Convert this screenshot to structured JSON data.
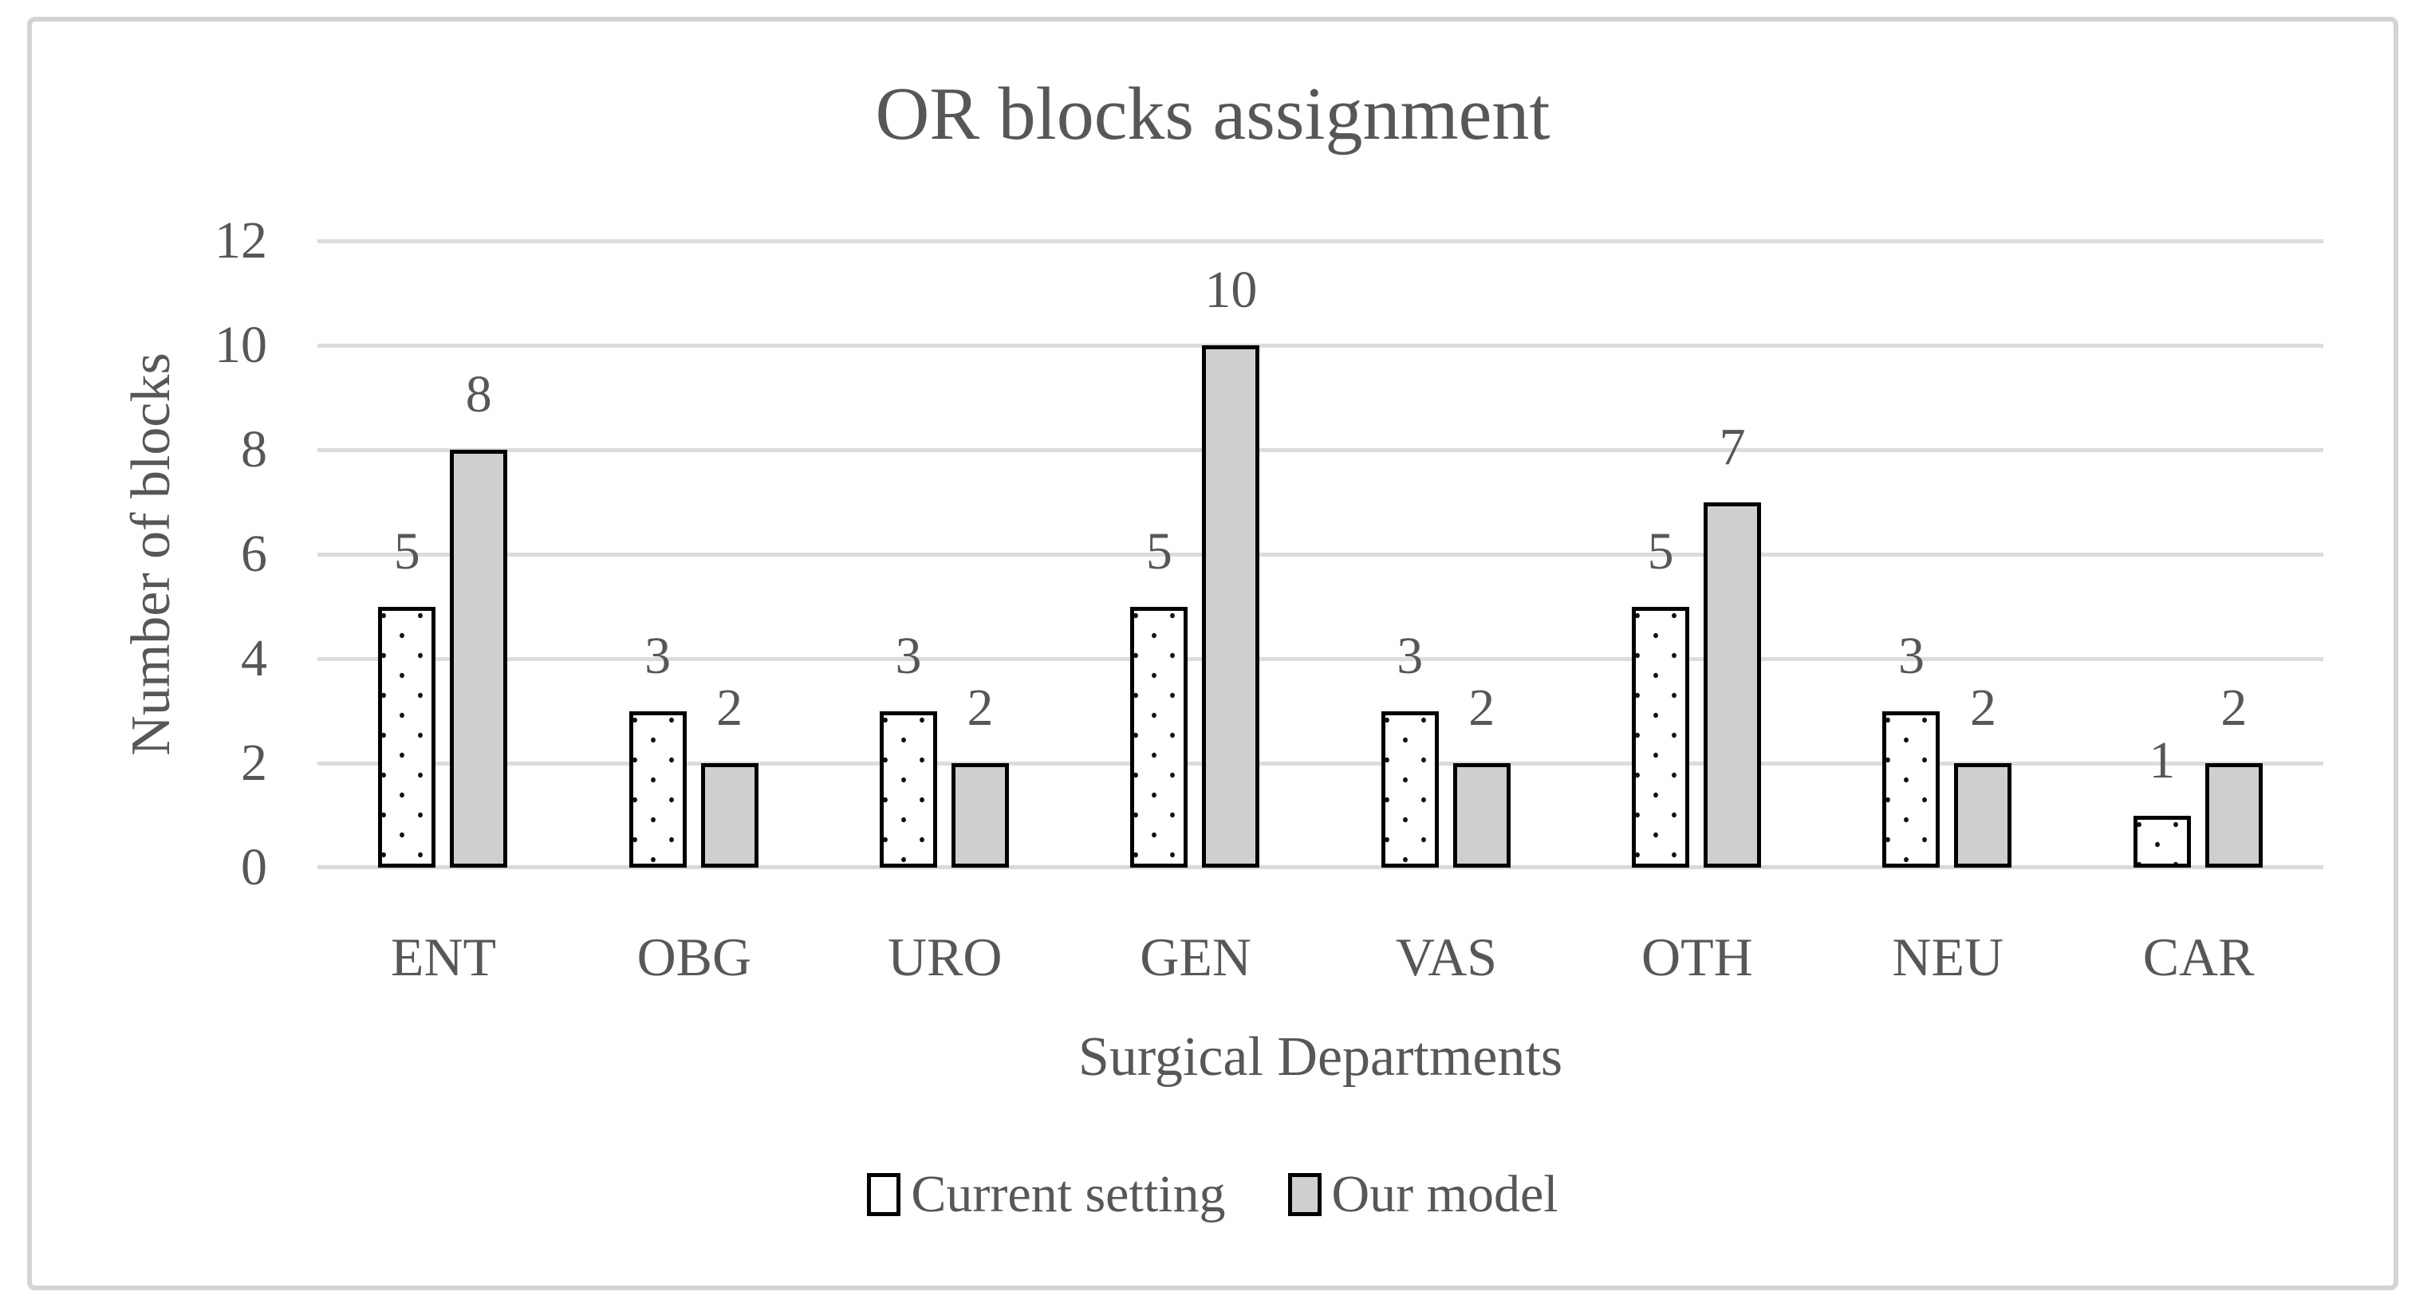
{
  "chart_data": {
    "type": "bar",
    "title": "OR blocks assignment",
    "xlabel": "Surgical Departments",
    "ylabel": "Number of blocks",
    "categories": [
      "ENT",
      "OBG",
      "URO",
      "GEN",
      "VAS",
      "OTH",
      "NEU",
      "CAR"
    ],
    "series": [
      {
        "name": "Current setting",
        "style": "white-with-black-dots",
        "values": [
          5,
          3,
          3,
          5,
          3,
          5,
          3,
          1
        ]
      },
      {
        "name": "Our model",
        "style": "solid-light-gray",
        "values": [
          8,
          2,
          2,
          10,
          2,
          7,
          2,
          2
        ]
      }
    ],
    "ylim": [
      0,
      12
    ],
    "yticks": [
      0,
      2,
      4,
      6,
      8,
      10,
      12
    ],
    "grid": true,
    "data_labels": true,
    "legend_position": "bottom"
  },
  "colors": {
    "text": "#575757",
    "gridline": "#dcdcdc",
    "bar_gray_fill": "#d0cfcf",
    "bar_border": "#000000",
    "dot_pattern": "#111111",
    "frame_border": "#d4d4d4",
    "background": "#ffffff"
  }
}
